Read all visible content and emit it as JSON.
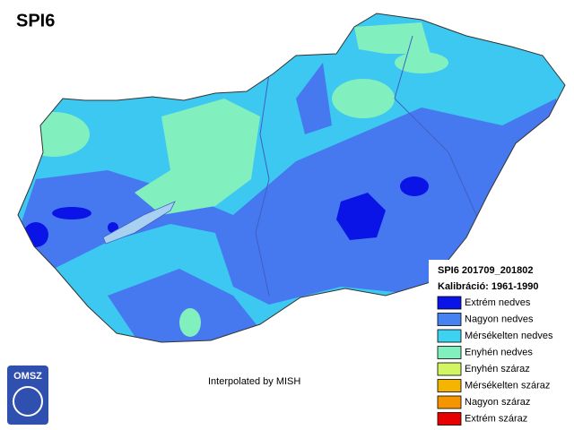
{
  "header": {
    "title": "SPI6"
  },
  "info": {
    "period": "SPI6 201709_201802",
    "calibration": "Kalibráció: 1961-1990"
  },
  "legend": [
    {
      "label": "Extrém nedves",
      "color": "#0a14e6"
    },
    {
      "label": "Nagyon nedves",
      "color": "#4682f0"
    },
    {
      "label": "Mérsékelten nedves",
      "color": "#3cd2f0"
    },
    {
      "label": "Enyhén nedves",
      "color": "#82f0be"
    },
    {
      "label": "Enyhén száraz",
      "color": "#d2f564"
    },
    {
      "label": "Mérsékelten száraz",
      "color": "#f5b400"
    },
    {
      "label": "Nagyon száraz",
      "color": "#f59600"
    },
    {
      "label": "Extrém száraz",
      "color": "#e60000"
    }
  ],
  "credit": "Interpolated by MISH",
  "logo": "OMSZ"
}
